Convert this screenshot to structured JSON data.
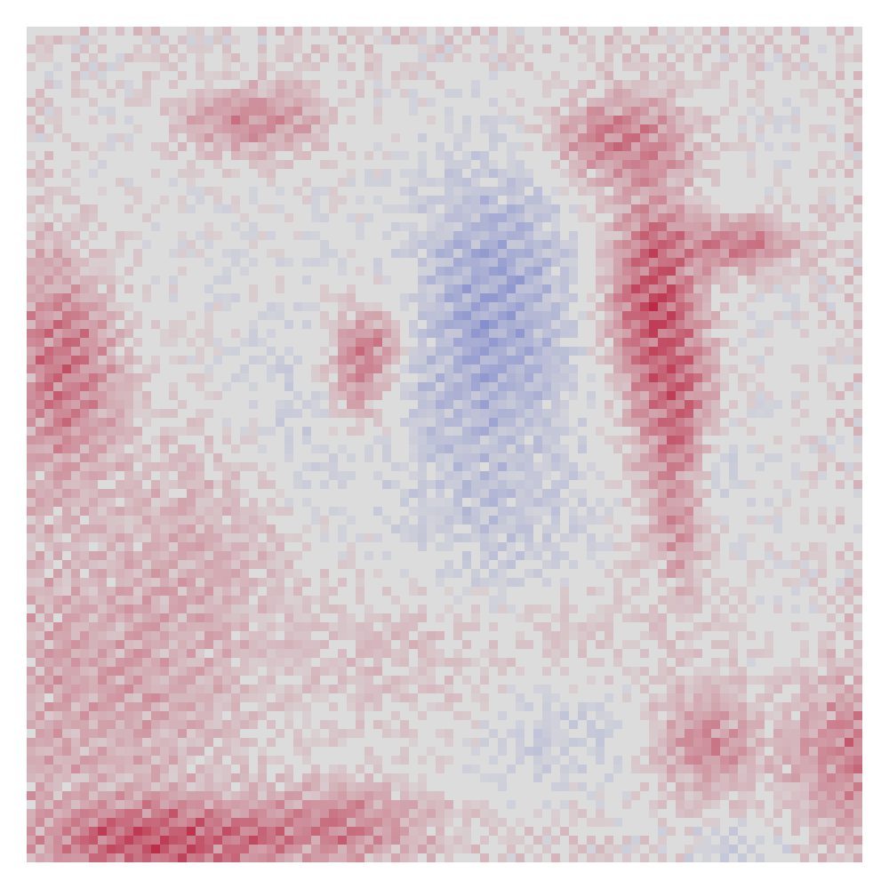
{
  "image": {
    "kind": "heatmap",
    "colormap": {
      "name": "coolwarm",
      "negative": "#3b4cc0",
      "neutral": "#dcdcdc",
      "positive": "#b40426"
    },
    "background_color": "#dcdcdc",
    "page_color": "#ffffff",
    "axes_visible": false,
    "grid_visible": false,
    "legend_visible": false,
    "colorbar_visible": false
  }
}
